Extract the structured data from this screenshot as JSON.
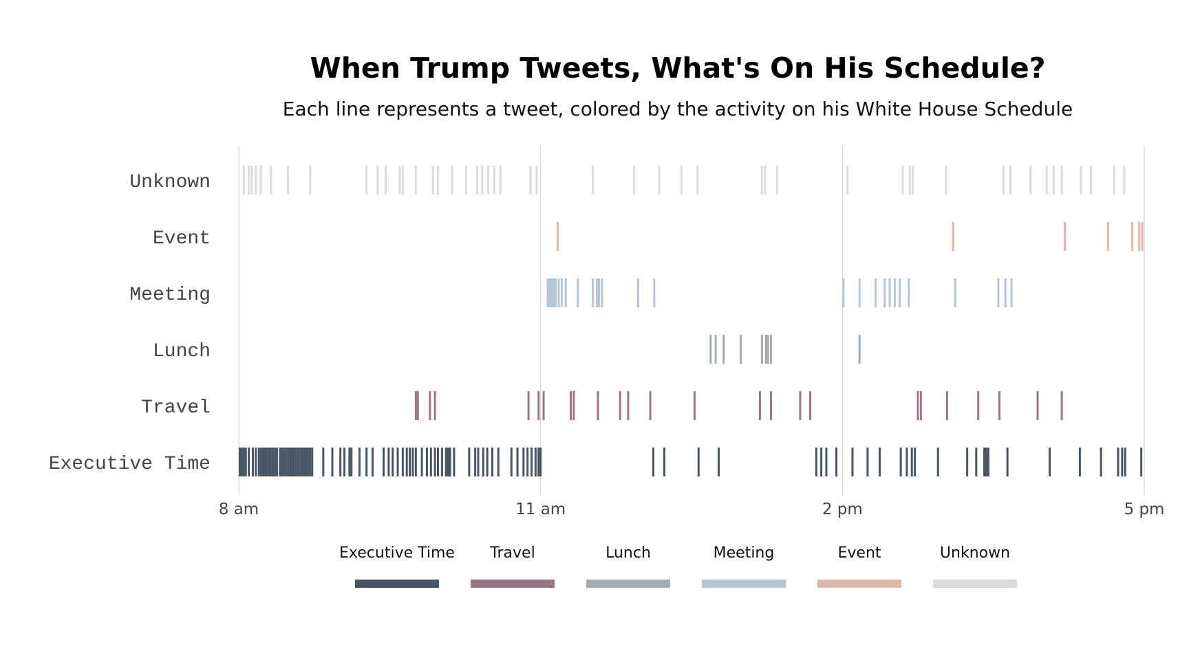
{
  "chart_data": {
    "type": "strip",
    "title": "When Trump Tweets, What's On His Schedule?",
    "subtitle": "Each line represents a tweet, colored by the activity on his White House Schedule",
    "x_domain_hours": [
      8,
      17
    ],
    "x_ticks": [
      {
        "label": "8 am",
        "hour": 8
      },
      {
        "label": "11 am",
        "hour": 11
      },
      {
        "label": "2 pm",
        "hour": 14
      },
      {
        "label": "5 pm",
        "hour": 17
      }
    ],
    "categories": [
      "Unknown",
      "Event",
      "Meeting",
      "Lunch",
      "Travel",
      "Executive Time"
    ],
    "legend_order": [
      "Executive Time",
      "Travel",
      "Lunch",
      "Meeting",
      "Event",
      "Unknown"
    ],
    "colors": {
      "Executive Time": "#475565",
      "Travel": "#9a7587",
      "Lunch": "#a3abb3",
      "Meeting": "#b6c5d6",
      "Event": "#dfb8a7",
      "Unknown": "#d9dbdd"
    },
    "series": [
      {
        "name": "Unknown",
        "times": [
          8.05,
          8.1,
          8.13,
          8.17,
          8.22,
          8.32,
          8.49,
          8.71,
          9.27,
          9.38,
          9.46,
          9.6,
          9.63,
          9.76,
          9.93,
          9.98,
          10.12,
          10.26,
          10.37,
          10.42,
          10.48,
          10.54,
          10.6,
          10.9,
          10.96,
          11.52,
          11.93,
          12.18,
          12.4,
          12.56,
          13.2,
          13.23,
          13.35,
          14.05,
          14.6,
          14.67,
          14.7,
          15.03,
          15.6,
          15.67,
          15.87,
          16.03,
          16.1,
          16.18,
          16.37,
          16.47,
          16.7,
          16.8
        ]
      },
      {
        "name": "Event",
        "times": [
          11.17,
          15.1,
          16.21,
          16.64,
          16.88,
          16.95,
          16.98
        ]
      },
      {
        "name": "Meeting",
        "times": [
          11.07,
          11.09,
          11.11,
          11.13,
          11.15,
          11.18,
          11.21,
          11.25,
          11.37,
          11.52,
          11.56,
          11.58,
          11.61,
          11.97,
          12.13,
          14.01,
          14.17,
          14.33,
          14.42,
          14.47,
          14.52,
          14.57,
          14.66,
          15.12,
          15.55,
          15.62,
          15.68
        ]
      },
      {
        "name": "Lunch",
        "times": [
          12.69,
          12.74,
          12.82,
          12.99,
          13.2,
          13.24,
          13.26,
          13.29,
          14.17
        ]
      },
      {
        "name": "Travel",
        "times": [
          9.76,
          9.78,
          9.9,
          9.95,
          10.88,
          10.98,
          11.03,
          11.3,
          11.33,
          11.57,
          11.79,
          11.87,
          12.09,
          12.53,
          13.18,
          13.29,
          13.58,
          13.68,
          14.75,
          14.78,
          15.04,
          15.35,
          15.56,
          15.94,
          16.18
        ]
      },
      {
        "name": "Executive Time",
        "times": [
          8.01,
          8.03,
          8.05,
          8.07,
          8.1,
          8.14,
          8.17,
          8.2,
          8.22,
          8.24,
          8.26,
          8.28,
          8.3,
          8.32,
          8.34,
          8.36,
          8.38,
          8.41,
          8.43,
          8.45,
          8.47,
          8.49,
          8.51,
          8.53,
          8.55,
          8.57,
          8.59,
          8.61,
          8.63,
          8.65,
          8.67,
          8.69,
          8.71,
          8.73,
          8.84,
          8.93,
          9.01,
          9.05,
          9.1,
          9.12,
          9.2,
          9.27,
          9.33,
          9.44,
          9.49,
          9.53,
          9.58,
          9.63,
          9.67,
          9.7,
          9.73,
          9.76,
          9.82,
          9.87,
          9.91,
          9.95,
          9.98,
          10.02,
          10.06,
          10.08,
          10.1,
          10.14,
          10.29,
          10.35,
          10.38,
          10.43,
          10.47,
          10.52,
          10.58,
          10.71,
          10.77,
          10.83,
          10.87,
          10.91,
          10.95,
          10.98,
          11.0,
          12.12,
          12.23,
          12.57,
          12.77,
          13.74,
          13.79,
          13.84,
          13.94,
          14.1,
          14.25,
          14.37,
          14.58,
          14.64,
          14.69,
          14.72,
          14.95,
          15.24,
          15.33,
          15.41,
          15.43,
          15.45,
          15.64,
          16.06,
          16.36,
          16.57,
          16.74,
          16.78,
          16.81,
          16.97
        ]
      }
    ],
    "legend_position": "bottom-center",
    "grid": "vertical-at-ticks"
  }
}
